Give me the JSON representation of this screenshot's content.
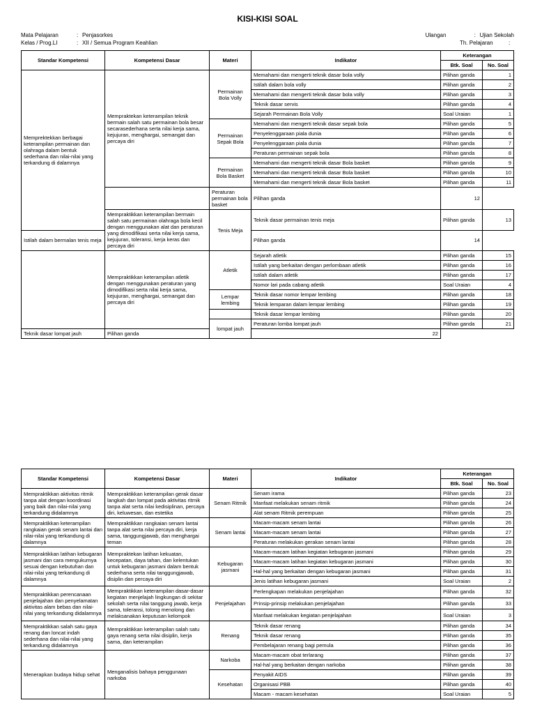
{
  "title": "KISI-KISI SOAL",
  "meta": {
    "left": [
      {
        "label": "Mata Pelajaran",
        "value": "Penjasorkes"
      },
      {
        "label": "Kelas / Prog.LI",
        "value": "XII / Semua Program Keahlian"
      }
    ],
    "right": [
      {
        "label": "Ulangan",
        "value": "Ujian Sekolah"
      },
      {
        "label": "Th. Pelajaran",
        "value": ""
      }
    ]
  },
  "headers": {
    "sk": "Standar Kompetensi",
    "kd": "Kompetensi Dasar",
    "materi": "Materi",
    "indikator": "Indikator",
    "ket": "Keterangan",
    "btk": "Btk. Soal",
    "no": "No. Soal"
  },
  "table1": [
    {
      "sk": "Memprektekkan berbagai keterampilan permainan dan olahraga dalam bentuk sederhana dan nilai-nilai yang terkandung di dalamnya",
      "sk_span": 14,
      "kd": "Mempraktekan keterampilan teknik bermain salah satu permainan bola besar secarasederhana serta nilai kerja sama, kejujuran, menghargai, semangat dan percaya diri",
      "kd_span": 12,
      "materi": "Permainan Bola Volly",
      "materi_span": 5,
      "ind": "Memahami dan mengerti teknik dasar bola volly",
      "btk": "Pilihan ganda",
      "no": "1"
    },
    {
      "ind": "Istilah dalam bola volly",
      "btk": "Pilihan ganda",
      "no": "2"
    },
    {
      "ind": "Memahami dan mengerti teknik dasar bola volly",
      "btk": "Pilihan ganda",
      "no": "3"
    },
    {
      "ind": "Teknik dasar servis",
      "btk": "Pilihan ganda",
      "no": "4"
    },
    {
      "ind": "Sejarah Permainan Bola Volly",
      "btk": "Soal Uraian",
      "no": "1"
    },
    {
      "materi": "Permainan Sepak Bola",
      "materi_span": 4,
      "ind": "Memahami dan mengerti teknik dasar sepak bola",
      "btk": "Pilihan ganda",
      "no": "5"
    },
    {
      "ind": "Penyelenggaraan piala dunia",
      "btk": "Pilihan ganda",
      "no": "6"
    },
    {
      "ind": "Penyelenggaraan piala dunia",
      "btk": "Pilihan ganda",
      "no": "7"
    },
    {
      "ind": "Peraturan permainan sepak bola",
      "btk": "Pilihan ganda",
      "no": "8"
    },
    {
      "materi": "Permainan Bola Basket",
      "materi_span": 3,
      "ind": "Memahami dan mengerti teknik dasar Bola basket",
      "btk": "Pilihan ganda",
      "no": "9"
    },
    {
      "ind": "Memahami dan mengerti teknik dasar Bola basket",
      "btk": "Pilihan ganda",
      "no": "10"
    },
    {
      "ind": "Memahami dan mengerti teknik dasar Bola basket",
      "btk": "Pilihan ganda",
      "no": "11"
    },
    {
      "materi": "",
      "materi_span": 1,
      "ind": "Peraturan permainan bola basket",
      "btk": "Pilihan ganda",
      "no": "12",
      "kd_extend": true
    },
    {
      "kd": "Mempraktikkan keterampilan bermain salah satu permainan olahraga bola kecil dengan menggunakan alat dan peraturan yang dimodifikasi serta nilai kerja sama, kejujuran, toleransi, kerja keras dan percaya diri",
      "kd_span": 2,
      "materi": "Tenis Meja",
      "materi_span": 2,
      "ind": "Teknik dasar permainan tenis meja",
      "btk": "Pilihan ganda",
      "no": "13"
    },
    {
      "ind": "Istilah dalam bermalan tenis meja",
      "btk": "Pilihan ganda",
      "no": "14"
    },
    {
      "sk": "",
      "sk_span": 8,
      "kd": "Mempraktikkan keterampilan atletik dengan menggunakan peraturan yang dimodifikasi serta nilai kerja sama, kejujuran, menghargai, semangat dan percaya diri",
      "kd_span": 8,
      "materi": "Atletik",
      "materi_span": 4,
      "ind": "Sejarah atletik",
      "btk": "Pilihan ganda",
      "no": "15"
    },
    {
      "ind": "Istilah yang berkaitan dengan perlombaan atletik",
      "btk": "Pilihan ganda",
      "no": "16"
    },
    {
      "ind": "Istilah dalam atletik",
      "btk": "Pilihan ganda",
      "no": "17"
    },
    {
      "ind": "Nomor lari pada cabang atletik",
      "btk": "Soal Uraian",
      "no": "4"
    },
    {
      "materi": "Lempar lembing",
      "materi_span": 2,
      "ind": "Teknik dasar nomor lempar lembing",
      "btk": "Pilihan ganda",
      "no": "18"
    },
    {
      "ind": "Teknik lemparan dalam lempar lembing",
      "btk": "Pilihan ganda",
      "no": "19"
    },
    {
      "materi": "",
      "materi_span": 1,
      "ind": "Teknik dasar lempar lembing",
      "btk": "Pilihan ganda",
      "no": "20"
    },
    {
      "materi": "lompat jauh",
      "materi_span": 2,
      "ind": "Peraturan lomba lompat jauh",
      "btk": "Pilihan ganda",
      "no": "21"
    },
    {
      "ind": "Teknik dasar lompat jauh",
      "btk": "Pilihan ganda",
      "no": "22"
    }
  ],
  "table2": [
    {
      "sk": "Mempraktikkan aktivitas ritmik tanpa alat dengan koordinasi yang baik dan nilai-nilai yang terkandung didalamnya",
      "sk_span": 3,
      "kd": "Mempraktikkan keterampilan gerak dasar langkah dan lompat pada aktivitas ritmik tanpa alat serta nilai kedisiplinan, percaya diri, keluwesan, dan estetika",
      "kd_span": 3,
      "materi": "Senam Ritmik",
      "materi_span": 3,
      "ind": "Senam irama",
      "btk": "Pilihan ganda",
      "no": "23"
    },
    {
      "ind": "Manfaat melakukan senam ritmik",
      "btk": "Pilihan ganda",
      "no": "24"
    },
    {
      "ind": "Alat senam Ritmik perempuan",
      "btk": "Pilihan ganda",
      "no": "25"
    },
    {
      "sk": "Mempraktikkan keterampilan rangkaian gerak senam lantai dan nilai-nilai yang terkandung di dalamnya",
      "sk_span": 3,
      "kd": "Mempraktikkan rangkaian senam lantai tanpa alat serta nilai percaya diri, kerja sama, tanggungjawab, dan menghargai teman",
      "kd_span": 3,
      "materi": "Senam lantai",
      "materi_span": 3,
      "ind": "Macam-macam senam lantai",
      "btk": "Pilihan ganda",
      "no": "26"
    },
    {
      "ind": "Macam-macam senam lantai",
      "btk": "Pilihan ganda",
      "no": "27"
    },
    {
      "ind": "Peraturan melakukan gerakan senam lantai",
      "btk": "Pilihan ganda",
      "no": "28"
    },
    {
      "sk": "Mempraktikkan latihan kebugaran jasmani dan cara mengukurnya sesuai dengan kebutuhan dan nilai-nilai yang terkandung di dalamnya",
      "sk_span": 4,
      "kd": "Mempraktekan latihan kekuatan, kecepatan, daya tahan, dan kelentukan untuk kebugaran jasmani dalam bentuk sederhana serta nilai tanggungjawab, disiplin dan percaya diri",
      "kd_span": 4,
      "materi": "Kebugaran jasmani",
      "materi_span": 4,
      "ind": "Macam-macam latihan kegiatan kebugaran jasmani",
      "btk": "Pilihan ganda",
      "no": "29"
    },
    {
      "ind": "Macam-macam latihan kegiatan kebugaran jasmani",
      "btk": "Pilihan ganda",
      "no": "30"
    },
    {
      "ind": "Hal-hal yang berkaitan dengan kebugaran jasmani",
      "btk": "Pilihan ganda",
      "no": "31"
    },
    {
      "ind": "Jenis latihan kebugaran jasmani",
      "btk": "Soal Uraian",
      "no": "2"
    },
    {
      "sk": "Mempraktikkan perencanaan penjelajahan dan penyelamatan aktivitas alam bebas dan nilai-nilai yang terkandung didalamnya",
      "sk_span": 3,
      "kd": "Mempraktikkan keterampilan dasar-dasar kegiatan menjelajah lingkungan di sekitar sekolah serta nilai tanggung jawab, kerja sama, toleransi, tolong menolong dan melaksanakan keputusan kelompok",
      "kd_span": 3,
      "materi": "Penjelajahan",
      "materi_span": 3,
      "ind": "Perlengkapan melakukan penjelajahan",
      "btk": "Pilihan ganda",
      "no": "32"
    },
    {
      "ind": "Prinsip-prinsip melakukan penjelajahan",
      "btk": "Pilihan ganda",
      "no": "33"
    },
    {
      "ind": "Manfaat melakukan kegiatan penjelajahan",
      "btk": "Soal Uraian",
      "no": "3"
    },
    {
      "sk": "Mempraktikkan salah satu gaya renang dan loncat indah sederhana dan nilai-nilai yang terkandung didalamnya",
      "sk_span": 3,
      "kd": "Mempraktikkan keterampilan salah satu gaya renang serta nilai disiplin, kerja sama, dan keterampilan",
      "kd_span": 3,
      "materi": "Renang",
      "materi_span": 3,
      "ind": "Teknik dasar renang",
      "btk": "Pilihan ganda",
      "no": "34"
    },
    {
      "ind": "Teknik dasar renang",
      "btk": "Pilihan ganda",
      "no": "35"
    },
    {
      "ind": "Pembelajaran renang bagi pemula",
      "btk": "Pilihan ganda",
      "no": "36"
    },
    {
      "sk": "Menerapkan budaya hidup sehat",
      "sk_span": 5,
      "kd": "Menganalisis bahaya penggunaan narkoba",
      "kd_span": 5,
      "materi": "Narkoba",
      "materi_span": 2,
      "ind": "Macam-macam obat terlarang",
      "btk": "Pilihan ganda",
      "no": "37"
    },
    {
      "ind": "Hal-hal yang berkaitan dengan narkoba",
      "btk": "Pilihan ganda",
      "no": "38"
    },
    {
      "materi": "Kesehatan",
      "materi_span": 3,
      "ind": "Penyakit AIDS",
      "btk": "Pilihan ganda",
      "no": "39"
    },
    {
      "ind": "Organisasi PBB",
      "btk": "Pilihan ganda",
      "no": "40"
    },
    {
      "ind": "Macam - macam kesehatan",
      "btk": "Soal Uraian",
      "no": "5"
    }
  ]
}
